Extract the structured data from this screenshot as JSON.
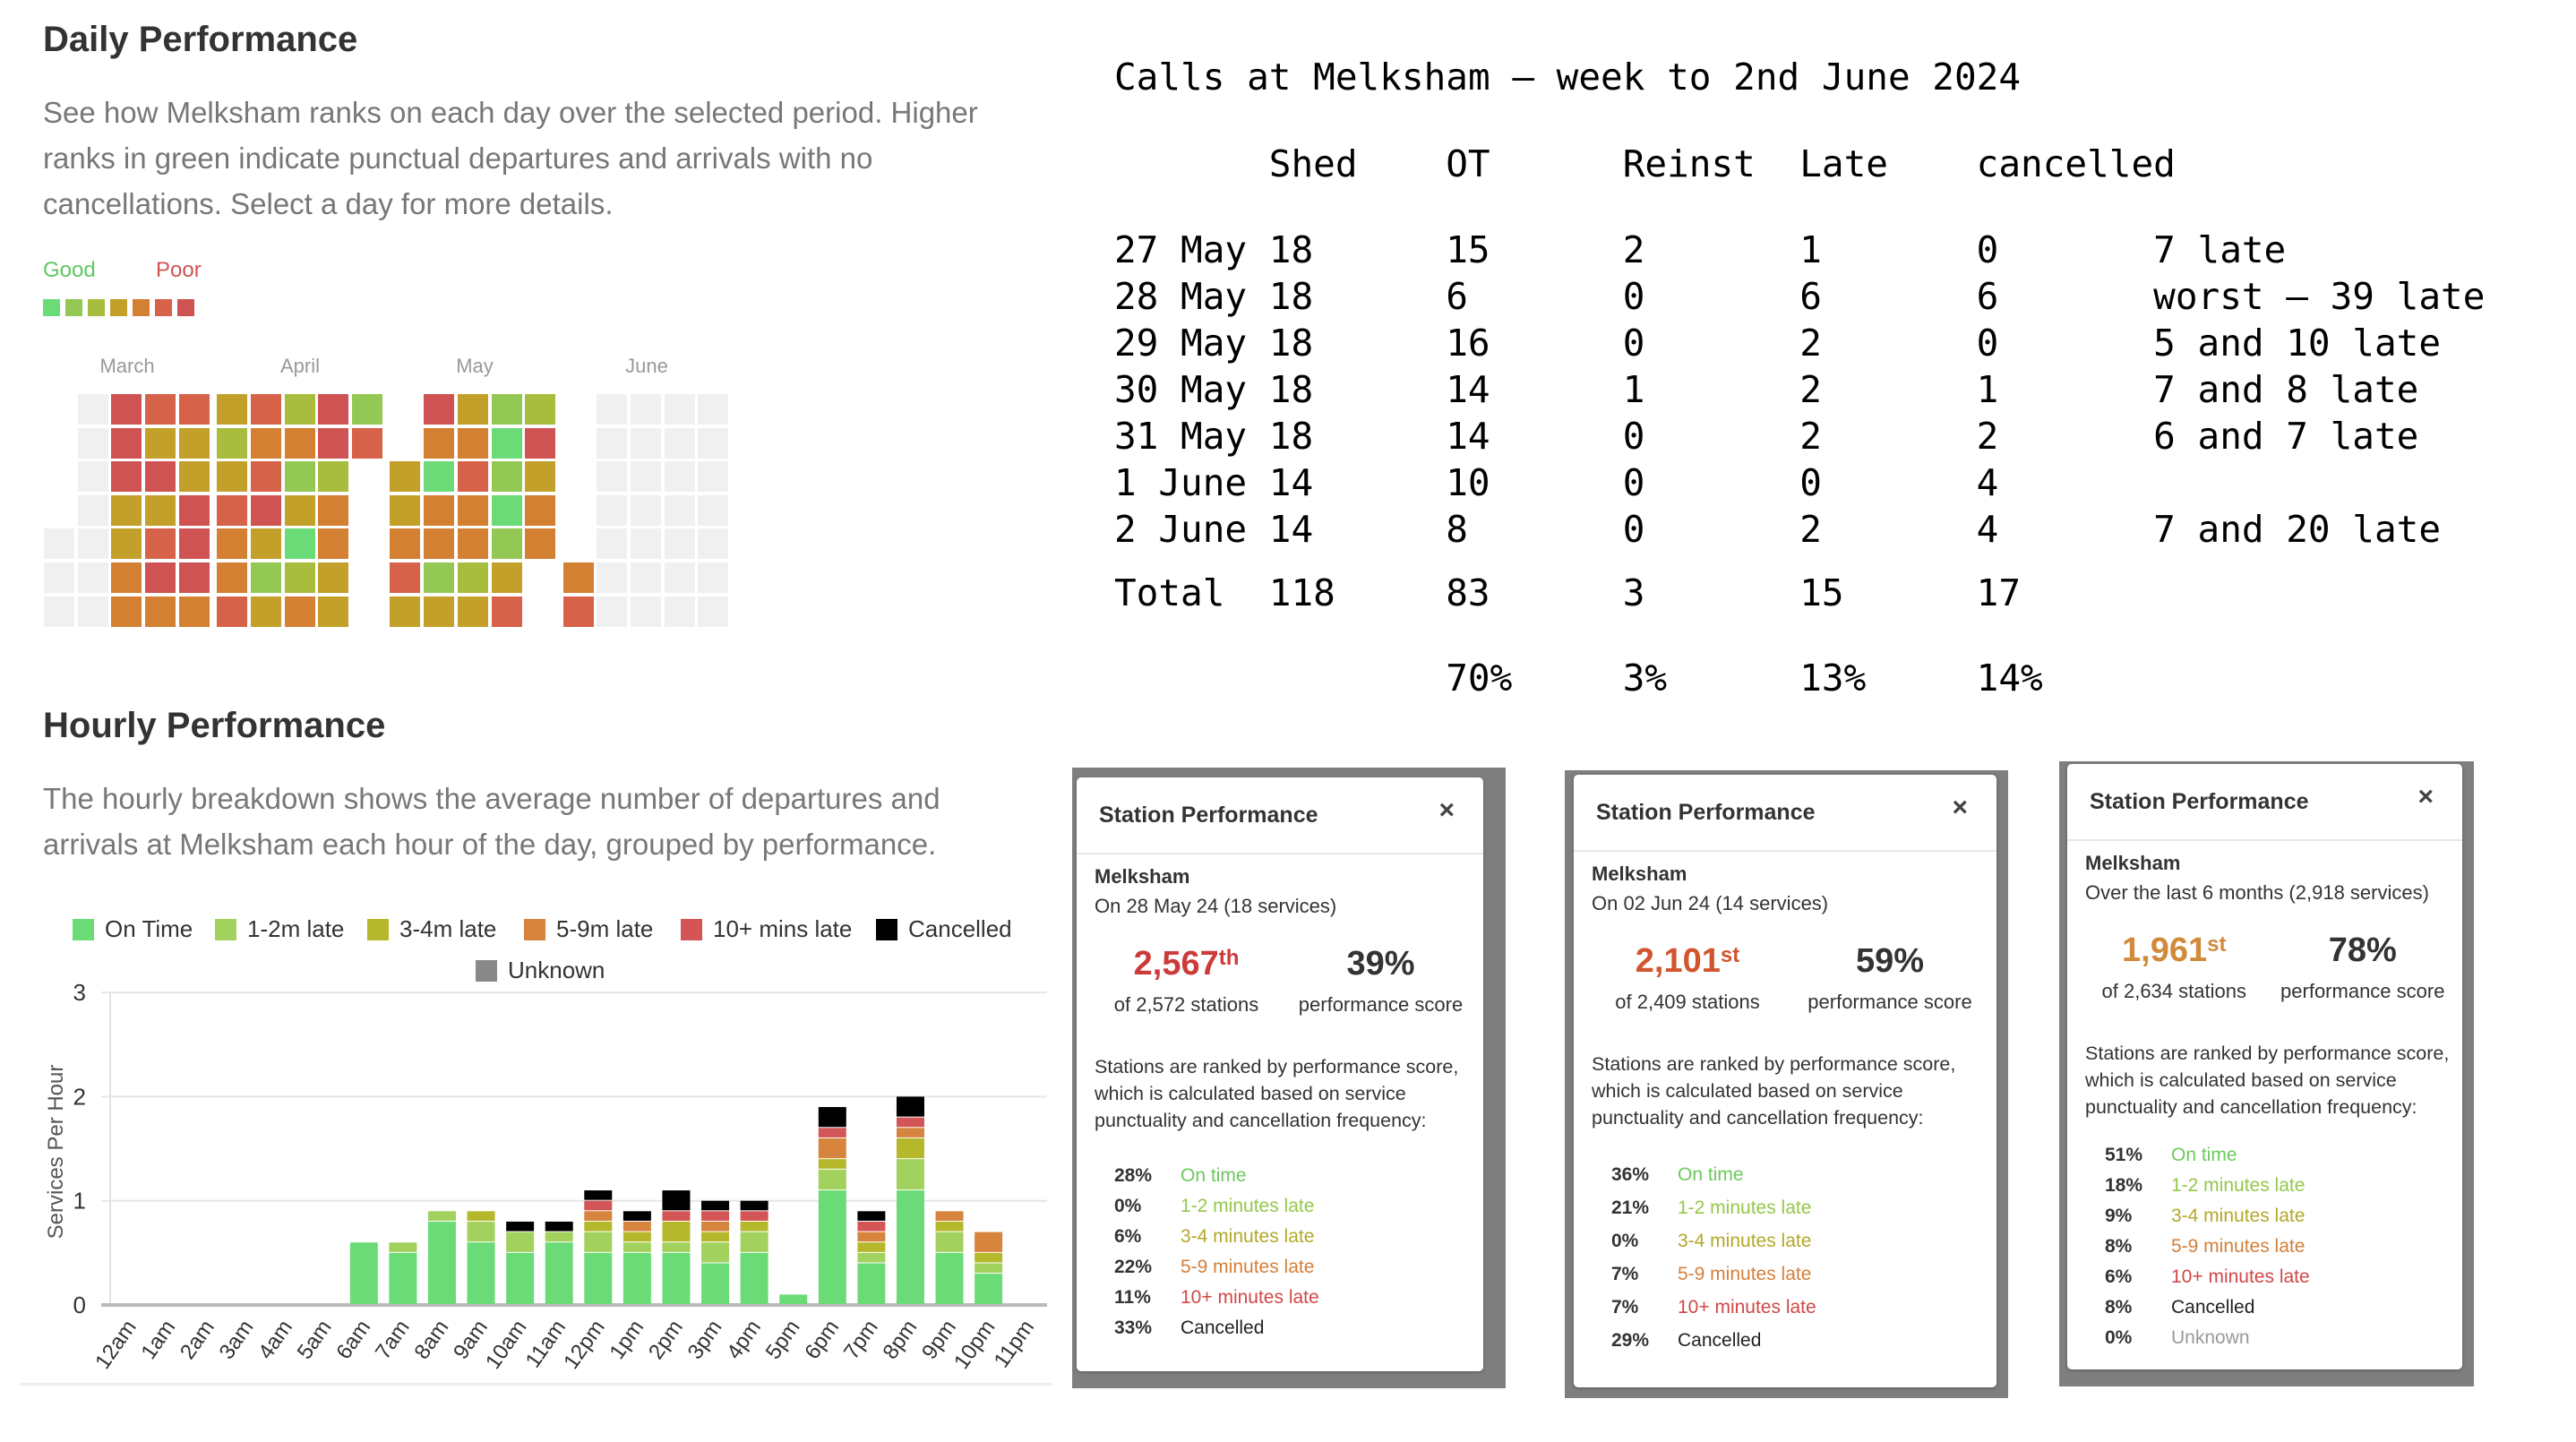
{
  "daily": {
    "title": "Daily Performance",
    "description": "See how Melksham ranks on each day over the selected period. Higher ranks in green indicate punctual departures and arrivals with no cancellations. Select a day for more details.",
    "legend_good": "Good",
    "legend_poor": "Poor",
    "legend_colors": [
      "#6bdb77",
      "#92c853",
      "#a8bc3d",
      "#c2a02a",
      "#d48033",
      "#d6624a",
      "#d05353"
    ],
    "months": [
      "March",
      "April",
      "May",
      "June"
    ],
    "color_codes": {
      "G": "#6bdb77",
      "L": "#92c853",
      "l": "#a8bc3d",
      "y": "#c2a02a",
      "o": "#d48033",
      "r": "#d6624a",
      "R": "#d05353",
      "g": "#f0f0f0"
    },
    "columns": [
      "____ggg",
      "ggggggg",
      "RRRyyoo",
      "ryRyrRo",
      "ryyRRRo",
      "ylyroor",
      "rorRyLy",
      "loLyGlo",
      "RRlooyy",
      "Lr_____",
      "__yyory",
      "RoGooLy",
      "yoroolY",
      "LGLGLyr",
      "lRyoo__",
      "_____or",
      "ggggggg",
      "ggggggg",
      "ggggggg",
      "ggggggg"
    ]
  },
  "hourly": {
    "title": "Hourly Performance",
    "description": "The hourly breakdown shows the average number of departures and arrivals at Melksham each hour of the day, grouped by performance."
  },
  "chart_data": {
    "type": "bar",
    "stacked": true,
    "ylabel": "Services Per Hour",
    "ylim": [
      0,
      3
    ],
    "yticks": [
      "0",
      "1",
      "2",
      "3"
    ],
    "grid": true,
    "legend_placement": "top",
    "categories": [
      "12am",
      "1am",
      "2am",
      "3am",
      "4am",
      "5am",
      "6am",
      "7am",
      "8am",
      "9am",
      "10am",
      "11am",
      "12pm",
      "1pm",
      "2pm",
      "3pm",
      "4pm",
      "5pm",
      "6pm",
      "7pm",
      "8pm",
      "9pm",
      "10pm",
      "11pm"
    ],
    "series": [
      {
        "name": "On Time",
        "color": "#6bdb77",
        "values": [
          0,
          0,
          0,
          0,
          0,
          0,
          0.6,
          0.5,
          0.8,
          0.6,
          0.5,
          0.6,
          0.5,
          0.5,
          0.5,
          0.4,
          0.5,
          0.1,
          1.1,
          0.4,
          1.1,
          0.5,
          0.3,
          0
        ]
      },
      {
        "name": "1-2m late",
        "color": "#a3d15e",
        "values": [
          0,
          0,
          0,
          0,
          0,
          0,
          0,
          0.1,
          0.1,
          0.2,
          0.2,
          0.1,
          0.2,
          0.1,
          0.1,
          0.2,
          0.2,
          0,
          0.2,
          0.1,
          0.3,
          0.2,
          0.1,
          0
        ]
      },
      {
        "name": "3-4m late",
        "color": "#b5b82a",
        "values": [
          0,
          0,
          0,
          0,
          0,
          0,
          0,
          0,
          0,
          0.1,
          0,
          0,
          0.1,
          0.1,
          0.2,
          0.1,
          0.1,
          0,
          0.1,
          0.1,
          0.2,
          0.1,
          0.1,
          0
        ]
      },
      {
        "name": "5-9m late",
        "color": "#d6843e",
        "values": [
          0,
          0,
          0,
          0,
          0,
          0,
          0,
          0,
          0,
          0,
          0,
          0,
          0.1,
          0.1,
          0,
          0.1,
          0,
          0,
          0.2,
          0.1,
          0.1,
          0.1,
          0.2,
          0
        ]
      },
      {
        "name": "10+ mins late",
        "color": "#d45555",
        "values": [
          0,
          0,
          0,
          0,
          0,
          0,
          0,
          0,
          0,
          0,
          0,
          0,
          0.1,
          0,
          0.1,
          0.1,
          0.1,
          0,
          0.1,
          0.1,
          0.1,
          0,
          0,
          0
        ]
      },
      {
        "name": "Cancelled",
        "color": "#000000",
        "values": [
          0,
          0,
          0,
          0,
          0,
          0,
          0,
          0,
          0,
          0,
          0.1,
          0.1,
          0.1,
          0.1,
          0.2,
          0.1,
          0.1,
          0,
          0.2,
          0.1,
          0.2,
          0,
          0,
          0
        ]
      },
      {
        "name": "Unknown",
        "color": "#888888",
        "values": [
          0,
          0,
          0,
          0,
          0,
          0,
          0,
          0,
          0,
          0,
          0,
          0,
          0,
          0,
          0,
          0,
          0,
          0,
          0,
          0,
          0,
          0,
          0,
          0
        ]
      }
    ]
  },
  "calls_table": {
    "title": "Calls at Melksham – week to 2nd June 2024",
    "headers": [
      "",
      "Shed",
      "OT",
      "Reinst",
      "Late",
      "cancelled",
      ""
    ],
    "rows": [
      [
        "27 May",
        "18",
        "15",
        "2",
        "1",
        "0",
        "7 late"
      ],
      [
        "28 May",
        "18",
        "6",
        "0",
        "6",
        "6",
        "worst – 39 late"
      ],
      [
        "29 May",
        "18",
        "16",
        "0",
        "2",
        "0",
        "5 and 10 late"
      ],
      [
        "30 May",
        "18",
        "14",
        "1",
        "2",
        "1",
        "7 and 8 late"
      ],
      [
        "31 May",
        "18",
        "14",
        "0",
        "2",
        "2",
        "6 and 7 late"
      ],
      [
        "1 June",
        "14",
        "10",
        "0",
        "0",
        "4",
        ""
      ],
      [
        "2 June",
        "14",
        "8",
        "0",
        "2",
        "4",
        "7 and 20 late"
      ]
    ],
    "total": [
      "Total",
      "118",
      "83",
      "3",
      "15",
      "17",
      ""
    ],
    "percentages": [
      "",
      "",
      "70%",
      "3%",
      "13%",
      "14%",
      ""
    ]
  },
  "cards": [
    {
      "title": "Station Performance",
      "close": "×",
      "station": "Melksham",
      "period": "On 28 May 24 (18 services)",
      "rank": "2,567",
      "rank_suffix": "th",
      "rank_color": "#cc3a3a",
      "of_stations": "of 2,572 stations",
      "score": "39%",
      "score_label": "performance score",
      "description": "Stations are ranked by performance score, which is calculated based on service punctuality and cancellation frequency:",
      "breakdown": [
        {
          "pct": "28%",
          "label": "On time",
          "color": "#6cc95c"
        },
        {
          "pct": "0%",
          "label": "1-2 minutes late",
          "color": "#93c84a"
        },
        {
          "pct": "6%",
          "label": "3-4 minutes late",
          "color": "#b3a82a"
        },
        {
          "pct": "22%",
          "label": "5-9 minutes late",
          "color": "#d4803a"
        },
        {
          "pct": "11%",
          "label": "10+ minutes late",
          "color": "#d04848"
        },
        {
          "pct": "33%",
          "label": "Cancelled",
          "color": "#222222"
        }
      ]
    },
    {
      "title": "Station Performance",
      "close": "×",
      "station": "Melksham",
      "period": "On 02 Jun 24 (14 services)",
      "rank": "2,101",
      "rank_suffix": "st",
      "rank_color": "#d1552e",
      "of_stations": "of 2,409 stations",
      "score": "59%",
      "score_label": "performance score",
      "description": "Stations are ranked by performance score, which is calculated based on service punctuality and cancellation frequency:",
      "breakdown": [
        {
          "pct": "36%",
          "label": "On time",
          "color": "#6cc95c"
        },
        {
          "pct": "21%",
          "label": "1-2 minutes late",
          "color": "#93c84a"
        },
        {
          "pct": "0%",
          "label": "3-4 minutes late",
          "color": "#b3a82a"
        },
        {
          "pct": "7%",
          "label": "5-9 minutes late",
          "color": "#d4803a"
        },
        {
          "pct": "7%",
          "label": "10+ minutes late",
          "color": "#d04848"
        },
        {
          "pct": "29%",
          "label": "Cancelled",
          "color": "#222222"
        }
      ]
    },
    {
      "title": "Station Performance",
      "close": "×",
      "station": "Melksham",
      "period": "Over the last 6 months (2,918 services)",
      "rank": "1,961",
      "rank_suffix": "st",
      "rank_color": "#d08a3a",
      "of_stations": "of 2,634 stations",
      "score": "78%",
      "score_label": "performance score",
      "description": "Stations are ranked by performance score, which is calculated based on service punctuality and cancellation frequency:",
      "breakdown": [
        {
          "pct": "51%",
          "label": "On time",
          "color": "#6cc95c"
        },
        {
          "pct": "18%",
          "label": "1-2 minutes late",
          "color": "#93c84a"
        },
        {
          "pct": "9%",
          "label": "3-4 minutes late",
          "color": "#b3a82a"
        },
        {
          "pct": "8%",
          "label": "5-9 minutes late",
          "color": "#d4803a"
        },
        {
          "pct": "6%",
          "label": "10+ minutes late",
          "color": "#d04848"
        },
        {
          "pct": "8%",
          "label": "Cancelled",
          "color": "#222222"
        },
        {
          "pct": "0%",
          "label": "Unknown",
          "color": "#999999"
        }
      ]
    }
  ]
}
